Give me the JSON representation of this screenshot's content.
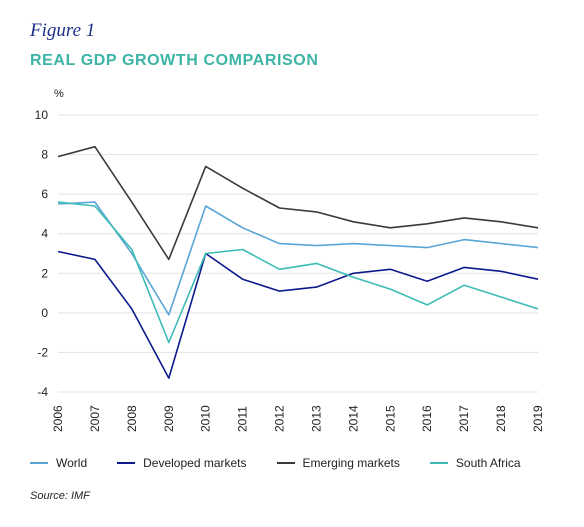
{
  "figure_label": "Figure 1",
  "figure_title": "REAL GDP GROWTH COMPARISON",
  "unit_label": "%",
  "source": "Source: IMF",
  "colors": {
    "World": "#5aa5d6",
    "Developed markets": "#0d1a8c",
    "Emerging markets": "#3a3a3a",
    "South Africa": "#3cbcb4"
  },
  "chart_data": {
    "type": "line",
    "title": "REAL GDP GROWTH COMPARISON",
    "ylabel": "%",
    "xlabel": "",
    "ylim": [
      -4,
      10
    ],
    "yticks": [
      "10",
      "8",
      "6",
      "4",
      "2",
      "0",
      "-2",
      "-4"
    ],
    "grid": "horizontal",
    "legend_position": "bottom",
    "x": [
      "2006",
      "2007",
      "2008",
      "2009",
      "2010",
      "2011",
      "2012",
      "2013",
      "2014",
      "2015",
      "2016",
      "2017",
      "2018",
      "2019"
    ],
    "series": [
      {
        "name": "World",
        "values": [
          5.5,
          5.6,
          3.0,
          -0.1,
          5.4,
          4.3,
          3.5,
          3.4,
          3.5,
          3.4,
          3.3,
          3.7,
          3.5,
          3.3
        ]
      },
      {
        "name": "Developed markets",
        "values": [
          3.1,
          2.7,
          0.2,
          -3.3,
          3.0,
          1.7,
          1.1,
          1.3,
          2.0,
          2.2,
          1.6,
          2.3,
          2.1,
          1.7
        ]
      },
      {
        "name": "Emerging markets",
        "values": [
          7.9,
          8.4,
          5.6,
          2.7,
          7.4,
          6.3,
          5.3,
          5.1,
          4.6,
          4.3,
          4.5,
          4.8,
          4.6,
          4.3
        ]
      },
      {
        "name": "South Africa",
        "values": [
          5.6,
          5.4,
          3.2,
          -1.5,
          3.0,
          3.2,
          2.2,
          2.5,
          1.8,
          1.2,
          0.4,
          1.4,
          0.8,
          0.2
        ]
      }
    ]
  }
}
